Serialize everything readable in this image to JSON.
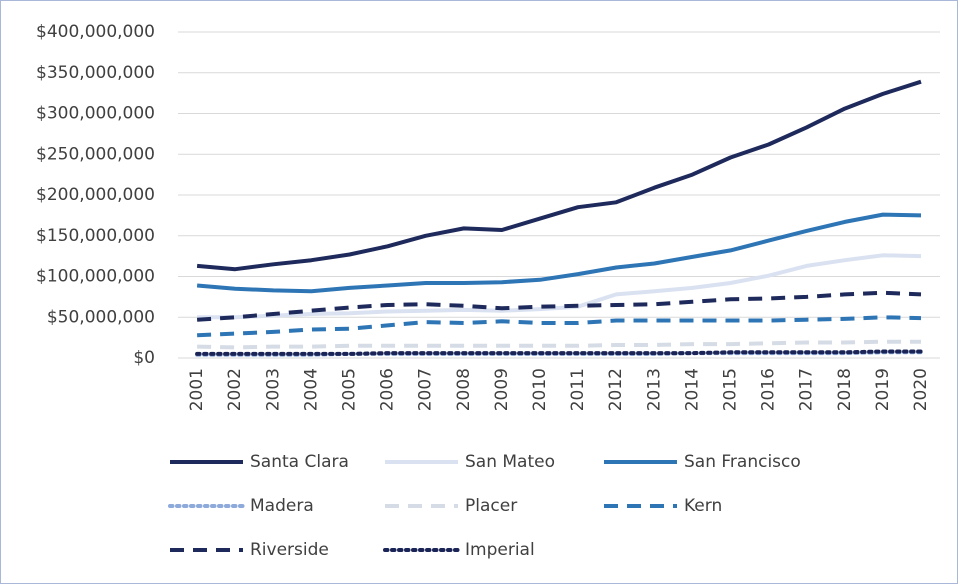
{
  "chart_data": {
    "type": "line",
    "categories": [
      "2001",
      "2002",
      "2003",
      "2004",
      "2005",
      "2006",
      "2007",
      "2008",
      "2009",
      "2010",
      "2011",
      "2012",
      "2013",
      "2014",
      "2015",
      "2016",
      "2017",
      "2018",
      "2019",
      "2020"
    ],
    "ylim": [
      0,
      400000000
    ],
    "yticks": [
      {
        "value": 0,
        "label": "$0"
      },
      {
        "value": 50000000,
        "label": "$50,000,000"
      },
      {
        "value": 100000000,
        "label": "$100,000,000"
      },
      {
        "value": 150000000,
        "label": "$150,000,000"
      },
      {
        "value": 200000000,
        "label": "$200,000,000"
      },
      {
        "value": 250000000,
        "label": "$250,000,000"
      },
      {
        "value": 300000000,
        "label": "$300,000,000"
      },
      {
        "value": 350000000,
        "label": "$350,000,000"
      },
      {
        "value": 400000000,
        "label": "$400,000,000"
      }
    ],
    "grid": true,
    "legend": "bottom",
    "series": [
      {
        "name": "Santa Clara",
        "color": "#1f2a5c",
        "dash": "solid",
        "values": [
          113000000,
          109000000,
          115000000,
          120000000,
          127000000,
          137000000,
          150000000,
          159000000,
          157000000,
          171000000,
          185000000,
          191000000,
          209000000,
          225000000,
          246000000,
          262000000,
          283000000,
          306000000,
          324000000,
          339000000
        ]
      },
      {
        "name": "San Mateo",
        "color": "#dae2f1",
        "dash": "solid",
        "values": [
          50000000,
          50000000,
          52000000,
          54000000,
          55000000,
          57000000,
          58000000,
          59000000,
          58000000,
          60000000,
          63000000,
          78000000,
          82000000,
          86000000,
          92000000,
          101000000,
          113000000,
          120000000,
          126000000,
          125000000
        ]
      },
      {
        "name": "San Francisco",
        "color": "#2e75b6",
        "dash": "solid",
        "values": [
          89000000,
          85000000,
          83000000,
          82000000,
          86000000,
          89000000,
          92000000,
          92000000,
          93000000,
          96000000,
          103000000,
          111000000,
          116000000,
          124000000,
          132000000,
          144000000,
          156000000,
          167000000,
          176000000,
          175000000
        ]
      },
      {
        "name": "Madera",
        "color": "#8eaadb",
        "dash": "dot",
        "values": [
          4000000,
          4000000,
          4000000,
          4000000,
          5000000,
          5000000,
          5000000,
          5000000,
          5000000,
          5000000,
          5000000,
          5000000,
          5000000,
          6000000,
          6000000,
          6000000,
          6000000,
          6000000,
          7000000,
          7000000
        ]
      },
      {
        "name": "Placer",
        "color": "#d6dce5",
        "dash": "dash",
        "values": [
          14000000,
          13000000,
          14000000,
          14000000,
          15000000,
          15000000,
          15000000,
          15000000,
          15000000,
          15000000,
          15000000,
          16000000,
          16000000,
          17000000,
          17000000,
          18000000,
          19000000,
          19000000,
          20000000,
          20000000
        ]
      },
      {
        "name": "Kern",
        "color": "#2e75b6",
        "dash": "dash",
        "values": [
          28000000,
          30000000,
          32000000,
          35000000,
          36000000,
          40000000,
          44000000,
          43000000,
          45000000,
          43000000,
          43000000,
          46000000,
          46000000,
          46000000,
          46000000,
          46000000,
          47000000,
          48000000,
          50000000,
          49000000
        ]
      },
      {
        "name": "Riverside",
        "color": "#1f2a5c",
        "dash": "dash",
        "values": [
          47000000,
          50000000,
          54000000,
          58000000,
          62000000,
          65000000,
          66000000,
          64000000,
          61000000,
          63000000,
          64000000,
          65000000,
          66000000,
          69000000,
          72000000,
          73000000,
          75000000,
          78000000,
          80000000,
          78000000
        ]
      },
      {
        "name": "Imperial",
        "color": "#1a2456",
        "dash": "dot",
        "values": [
          5000000,
          5000000,
          5000000,
          5000000,
          5000000,
          6000000,
          6000000,
          6000000,
          6000000,
          6000000,
          6000000,
          6000000,
          6000000,
          6000000,
          7000000,
          7000000,
          7000000,
          7000000,
          8000000,
          8000000
        ]
      }
    ]
  }
}
